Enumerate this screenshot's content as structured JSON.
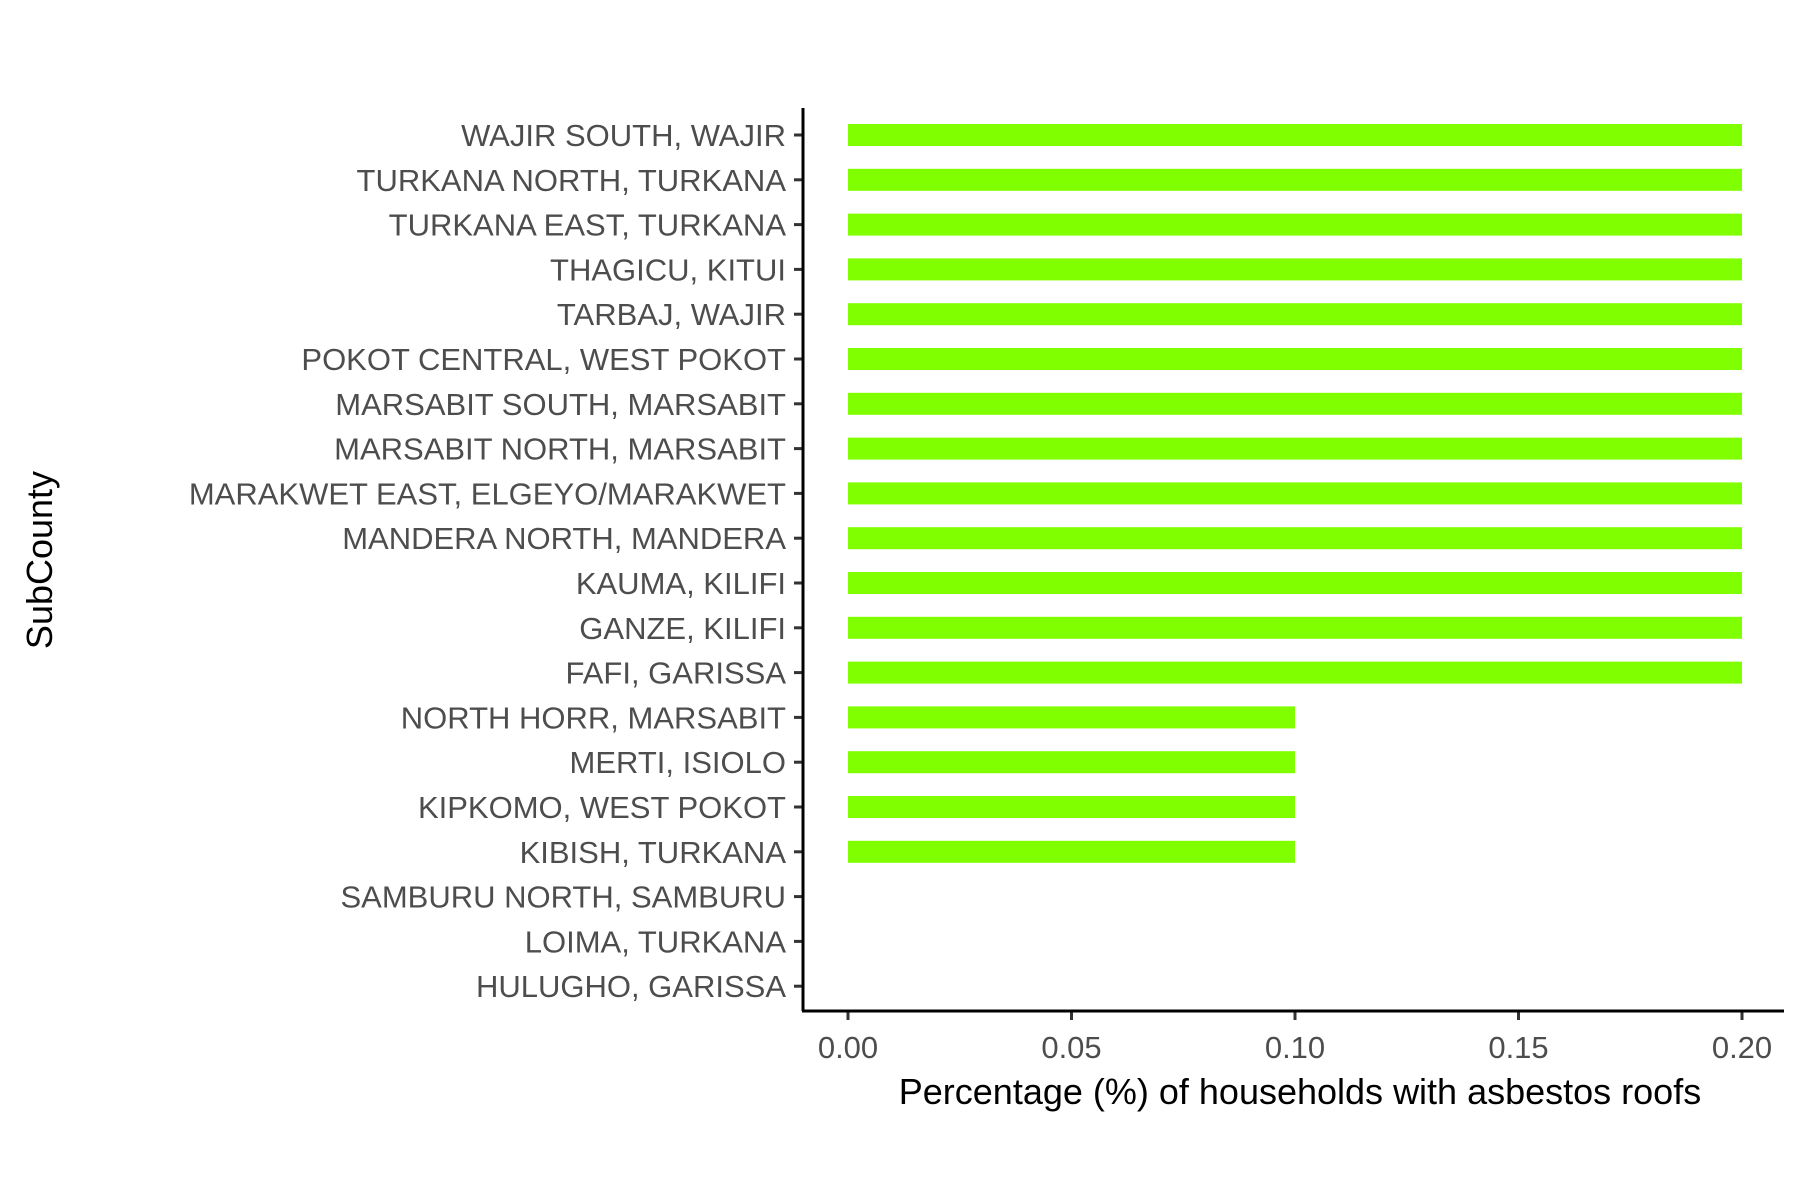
{
  "chart_data": {
    "type": "bar",
    "orientation": "horizontal",
    "title": "",
    "xlabel": "Percentage (%) of households with asbestos roofs",
    "ylabel": "SubCounty",
    "xlim": [
      0,
      0.2
    ],
    "xticks": [
      "0.00",
      "0.05",
      "0.10",
      "0.15",
      "0.20"
    ],
    "xtick_values": [
      0,
      0.05,
      0.1,
      0.15,
      0.2
    ],
    "grid": false,
    "legend": "none",
    "bar_color": "#7FFF00",
    "categories": [
      "WAJIR SOUTH, WAJIR",
      "TURKANA NORTH, TURKANA",
      "TURKANA EAST, TURKANA",
      "THAGICU, KITUI",
      "TARBAJ, WAJIR",
      "POKOT CENTRAL, WEST POKOT",
      "MARSABIT SOUTH, MARSABIT",
      "MARSABIT NORTH, MARSABIT",
      "MARAKWET EAST, ELGEYO/MARAKWET",
      "MANDERA NORTH, MANDERA",
      "KAUMA, KILIFI",
      "GANZE, KILIFI",
      "FAFI, GARISSA",
      "NORTH HORR, MARSABIT",
      "MERTI, ISIOLO",
      "KIPKOMO, WEST POKOT",
      "KIBISH, TURKANA",
      "SAMBURU NORTH, SAMBURU",
      "LOIMA, TURKANA",
      "HULUGHO, GARISSA"
    ],
    "values": [
      0.2,
      0.2,
      0.2,
      0.2,
      0.2,
      0.2,
      0.2,
      0.2,
      0.2,
      0.2,
      0.2,
      0.2,
      0.2,
      0.1,
      0.1,
      0.1,
      0.1,
      0,
      0,
      0
    ]
  }
}
